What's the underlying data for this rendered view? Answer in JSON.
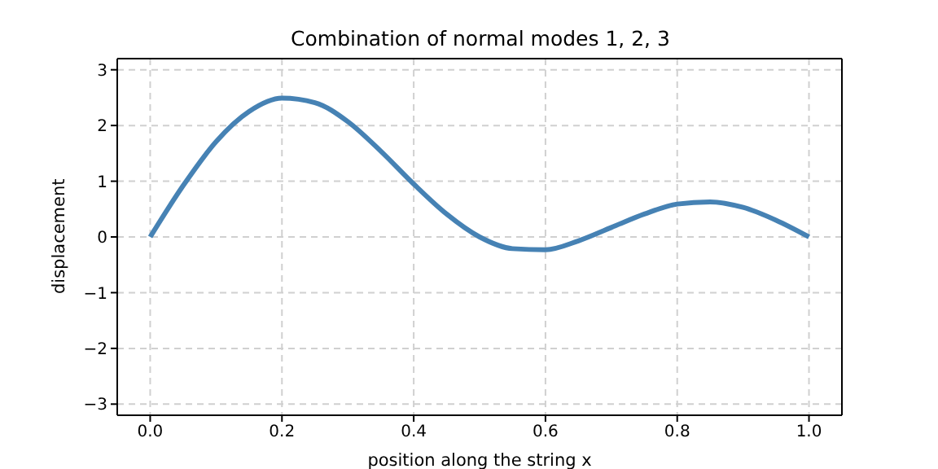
{
  "chart_data": {
    "type": "line",
    "title": "Combination of normal modes 1, 2, 3",
    "xlabel": "position along the string x",
    "ylabel": "displacement",
    "x": [
      0,
      0.05,
      0.1,
      0.15,
      0.2,
      0.25,
      0.3,
      0.35,
      0.4,
      0.45,
      0.5,
      0.55,
      0.6,
      0.65,
      0.7,
      0.75,
      0.8,
      0.85,
      0.9,
      0.95,
      1.0
    ],
    "series": [
      {
        "color": "#4682b4",
        "values": [
          0,
          0.92,
          1.71,
          2.25,
          2.49,
          2.41,
          2.07,
          1.54,
          0.95,
          0.41,
          0,
          -0.21,
          -0.23,
          -0.07,
          0.17,
          0.41,
          0.59,
          0.63,
          0.53,
          0.3,
          0
        ]
      }
    ],
    "xlim": [
      -0.05,
      1.05
    ],
    "xticks": [
      {
        "value": 0,
        "label": "0.0"
      },
      {
        "value": 0.2,
        "label": "0.2"
      },
      {
        "value": 0.4,
        "label": "0.4"
      },
      {
        "value": 0.6,
        "label": "0.6"
      },
      {
        "value": 0.8,
        "label": "0.8"
      },
      {
        "value": 1,
        "label": "1.0"
      }
    ],
    "ylim": [
      -3.2,
      3.2
    ],
    "yticks": [
      -3,
      -2,
      -1,
      0,
      1,
      2,
      3
    ],
    "grid": true,
    "marker": "none",
    "line_style": "solid"
  }
}
